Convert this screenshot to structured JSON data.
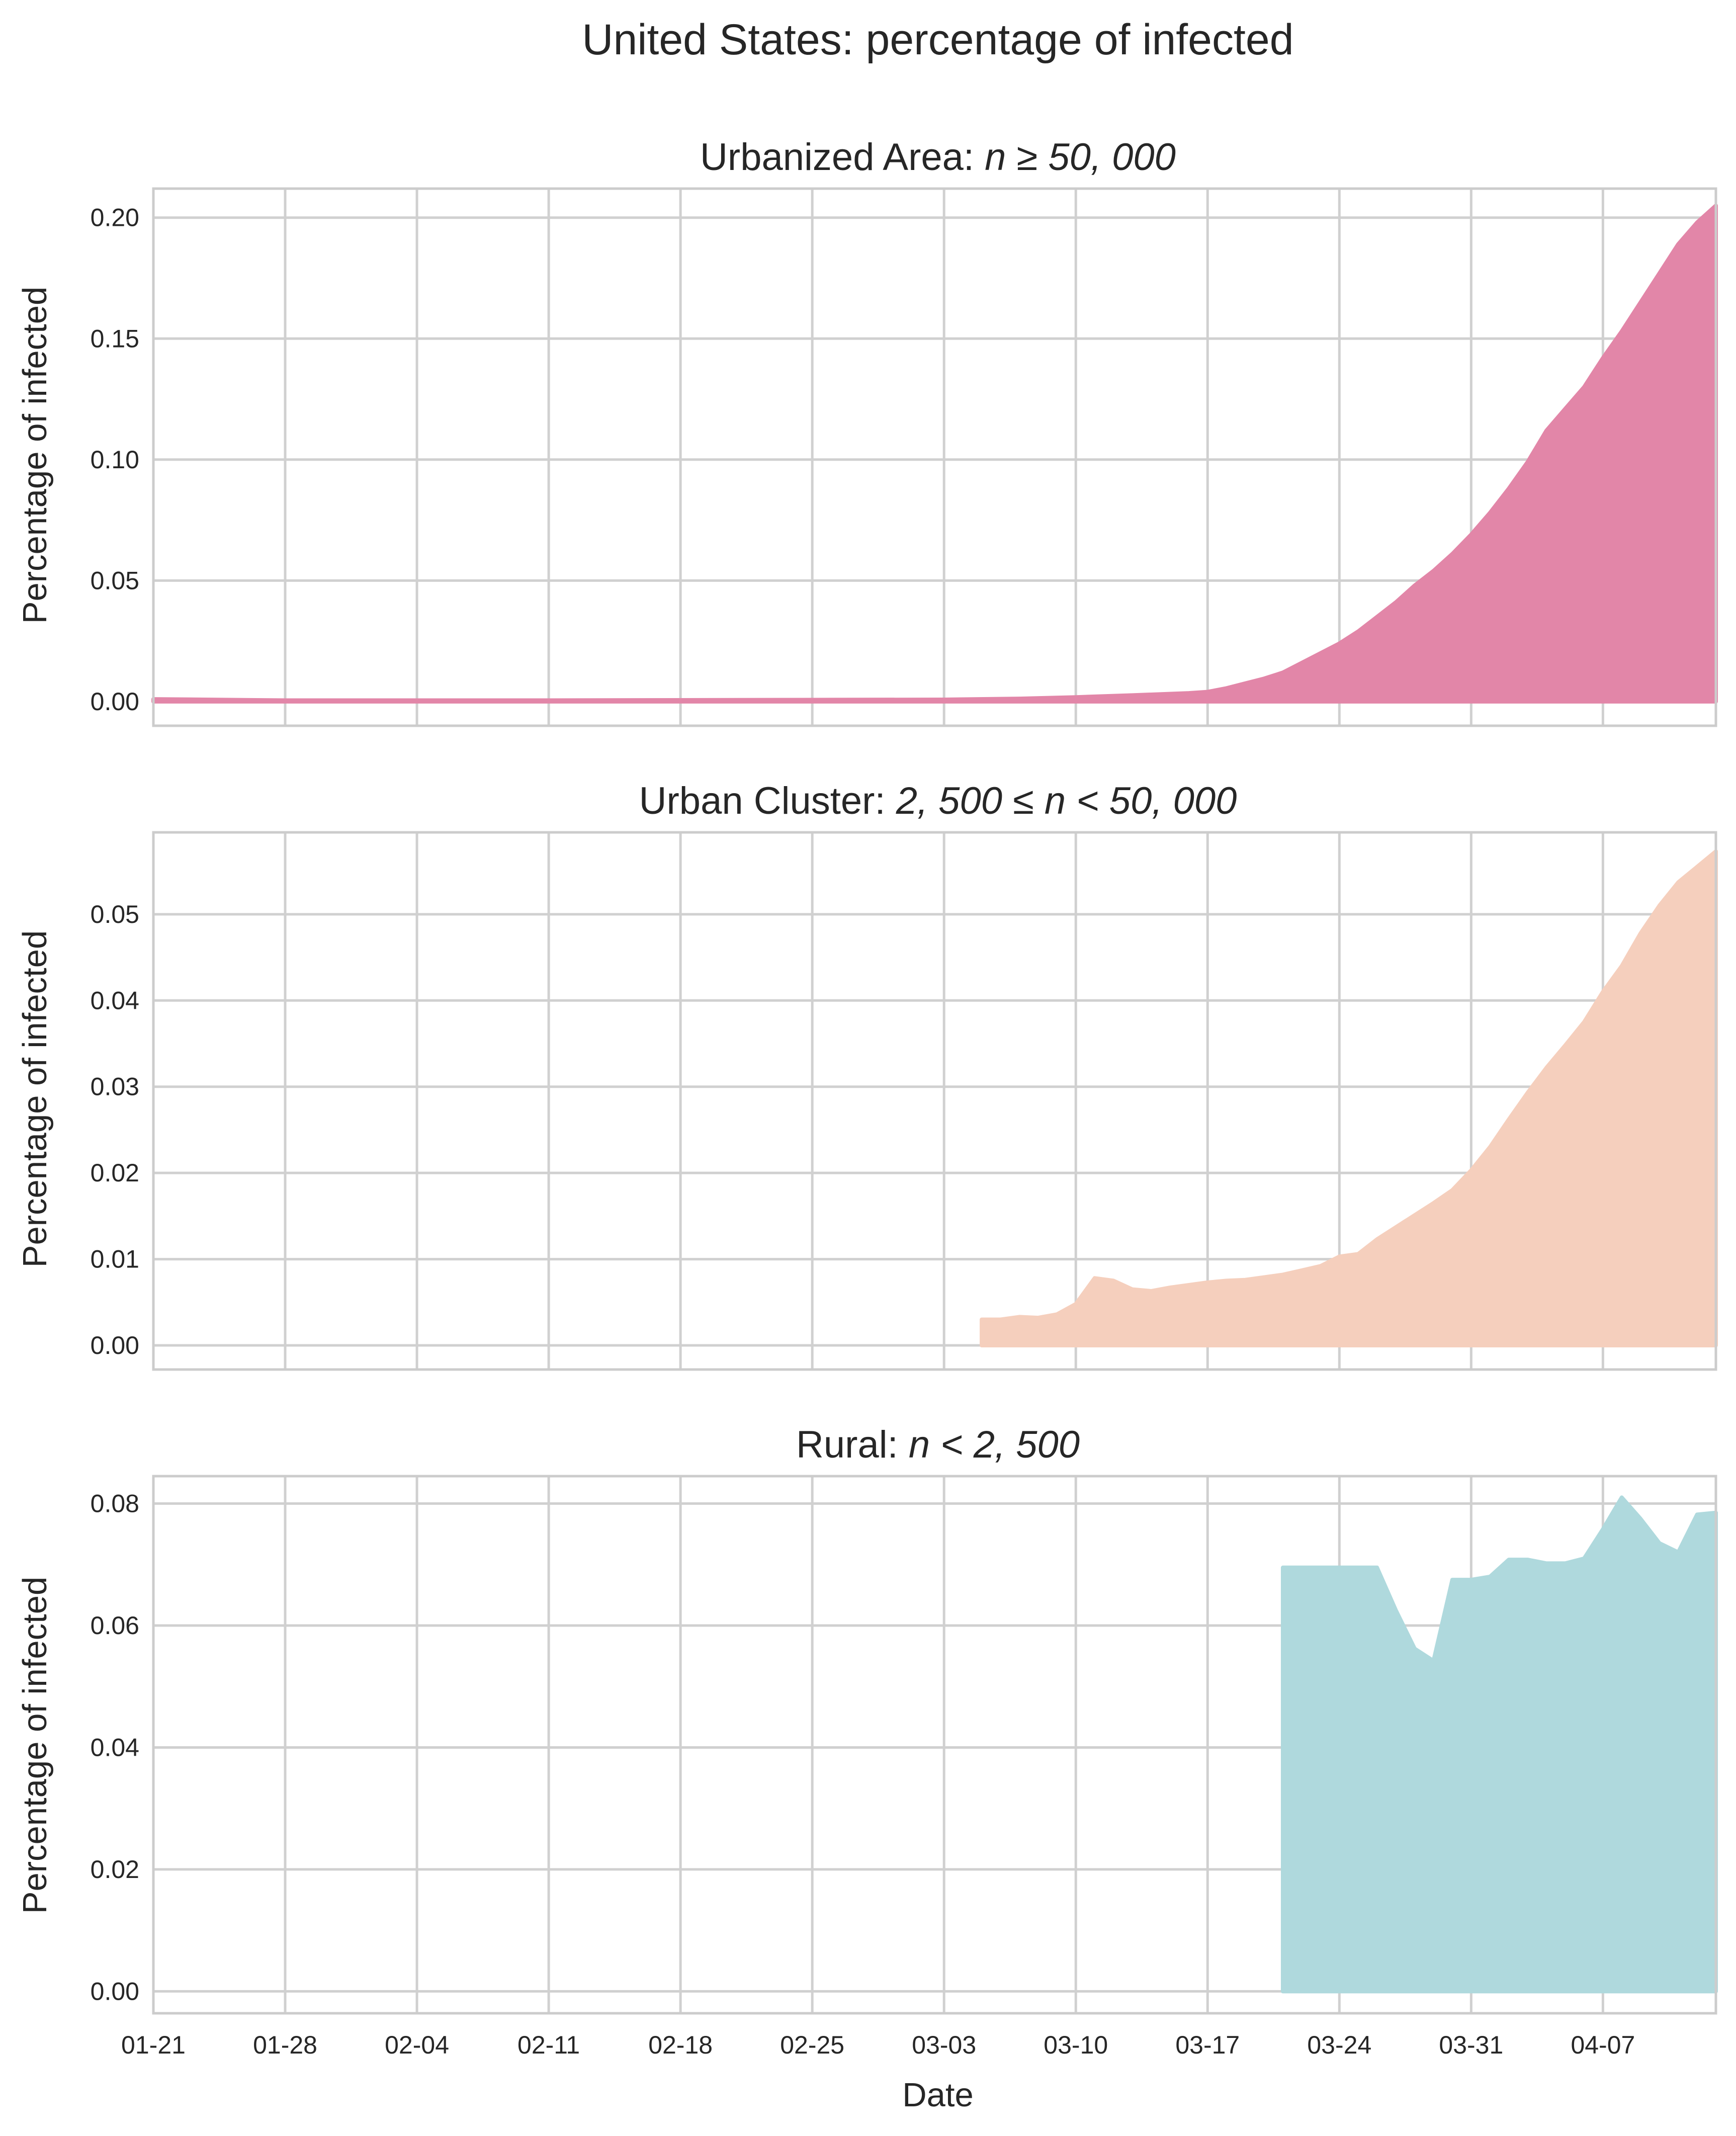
{
  "title": "United States: percentage of infected",
  "x_ticks": [
    "01-21",
    "01-28",
    "02-04",
    "02-11",
    "02-18",
    "02-25",
    "03-03",
    "03-10",
    "03-17",
    "03-24",
    "03-31",
    "04-07"
  ],
  "x_label": "Date",
  "chart_data": [
    {
      "type": "area",
      "title": "Urbanized Area: n ≥ 50, 000",
      "title_prefix": "Urbanized Area: ",
      "title_math": "n ≥ 50, 000",
      "xlabel": "Date",
      "ylabel": "Percentage of infected",
      "ylim": [
        -0.01,
        0.212
      ],
      "yticks": [
        0.0,
        0.05,
        0.1,
        0.15,
        0.2
      ],
      "ytick_labels": [
        "0.00",
        "0.05",
        "0.10",
        "0.15",
        "0.20"
      ],
      "xlim": [
        "2020-01-21",
        "2020-04-13"
      ],
      "grid": true,
      "color": "#e286a8",
      "series": [
        {
          "x": [
            "2020-01-21",
            "2020-01-28",
            "2020-02-04",
            "2020-02-11",
            "2020-02-18",
            "2020-02-25",
            "2020-03-03",
            "2020-03-07",
            "2020-03-10",
            "2020-03-13",
            "2020-03-16",
            "2020-03-17",
            "2020-03-18",
            "2020-03-19",
            "2020-03-20",
            "2020-03-21",
            "2020-03-22",
            "2020-03-23",
            "2020-03-24",
            "2020-03-25",
            "2020-03-26",
            "2020-03-27",
            "2020-03-28",
            "2020-03-29",
            "2020-03-30",
            "2020-03-31",
            "2020-04-01",
            "2020-04-02",
            "2020-04-03",
            "2020-04-04",
            "2020-04-05",
            "2020-04-06",
            "2020-04-07",
            "2020-04-08",
            "2020-04-09",
            "2020-04-10",
            "2020-04-11",
            "2020-04-12",
            "2020-04-13"
          ],
          "values": [
            0.001,
            0.0005,
            0.0005,
            0.0005,
            0.0006,
            0.0007,
            0.0008,
            0.0012,
            0.0018,
            0.0026,
            0.0035,
            0.004,
            0.0055,
            0.0075,
            0.0095,
            0.012,
            0.016,
            0.02,
            0.024,
            0.029,
            0.035,
            0.041,
            0.048,
            0.054,
            0.061,
            0.069,
            0.078,
            0.088,
            0.099,
            0.112,
            0.121,
            0.13,
            0.142,
            0.153,
            0.165,
            0.177,
            0.189,
            0.198,
            0.205
          ]
        }
      ]
    },
    {
      "type": "area",
      "title": "Urban Cluster: 2, 500 ≤ n < 50, 000",
      "title_prefix": "Urban Cluster: ",
      "title_math": "2, 500 ≤ n < 50, 000",
      "xlabel": "Date",
      "ylabel": "Percentage of infected",
      "ylim": [
        -0.0028,
        0.0595
      ],
      "yticks": [
        0.0,
        0.01,
        0.02,
        0.03,
        0.04,
        0.05
      ],
      "ytick_labels": [
        "0.00",
        "0.01",
        "0.02",
        "0.03",
        "0.04",
        "0.05"
      ],
      "xlim": [
        "2020-01-21",
        "2020-04-13"
      ],
      "grid": true,
      "color": "#f5cfbd",
      "series": [
        {
          "x": [
            "2020-03-05",
            "2020-03-06",
            "2020-03-07",
            "2020-03-08",
            "2020-03-09",
            "2020-03-10",
            "2020-03-11",
            "2020-03-12",
            "2020-03-13",
            "2020-03-14",
            "2020-03-15",
            "2020-03-16",
            "2020-03-17",
            "2020-03-18",
            "2020-03-19",
            "2020-03-20",
            "2020-03-21",
            "2020-03-22",
            "2020-03-23",
            "2020-03-24",
            "2020-03-25",
            "2020-03-26",
            "2020-03-27",
            "2020-03-28",
            "2020-03-29",
            "2020-03-30",
            "2020-03-31",
            "2020-04-01",
            "2020-04-02",
            "2020-04-03",
            "2020-04-04",
            "2020-04-05",
            "2020-04-06",
            "2020-04-07",
            "2020-04-08",
            "2020-04-09",
            "2020-04-10",
            "2020-04-11",
            "2020-04-12",
            "2020-04-13"
          ],
          "values": [
            0.003,
            0.003,
            0.0033,
            0.0032,
            0.0036,
            0.0048,
            0.0078,
            0.0075,
            0.0065,
            0.0063,
            0.0067,
            0.007,
            0.0073,
            0.0075,
            0.0076,
            0.0079,
            0.0082,
            0.0087,
            0.0092,
            0.0103,
            0.0106,
            0.0123,
            0.0137,
            0.0151,
            0.0165,
            0.018,
            0.0203,
            0.023,
            0.0262,
            0.0293,
            0.0322,
            0.0348,
            0.0375,
            0.041,
            0.044,
            0.0478,
            0.051,
            0.0537,
            0.0555,
            0.0573
          ]
        }
      ]
    },
    {
      "type": "area",
      "title": "Rural: n < 2, 500",
      "title_prefix": "Rural: ",
      "title_math": "n < 2, 500",
      "xlabel": "Date",
      "ylabel": "Percentage of infected",
      "ylim": [
        -0.0036,
        0.0845
      ],
      "yticks": [
        0.0,
        0.02,
        0.04,
        0.06,
        0.08
      ],
      "ytick_labels": [
        "0.00",
        "0.02",
        "0.04",
        "0.06",
        "0.08"
      ],
      "xlim": [
        "2020-01-21",
        "2020-04-13"
      ],
      "grid": true,
      "color": "#afd9dd",
      "series": [
        {
          "x": [
            "2020-03-21",
            "2020-03-22",
            "2020-03-23",
            "2020-03-24",
            "2020-03-25",
            "2020-03-26",
            "2020-03-27",
            "2020-03-28",
            "2020-03-29",
            "2020-03-30",
            "2020-03-31",
            "2020-04-01",
            "2020-04-02",
            "2020-04-03",
            "2020-04-04",
            "2020-04-05",
            "2020-04-06",
            "2020-04-07",
            "2020-04-08",
            "2020-04-09",
            "2020-04-10",
            "2020-04-11",
            "2020-04-12",
            "2020-04-13"
          ],
          "values": [
            0.0695,
            0.0695,
            0.0695,
            0.0695,
            0.0695,
            0.0695,
            0.0625,
            0.0562,
            0.0542,
            0.0675,
            0.0675,
            0.068,
            0.0708,
            0.0708,
            0.0702,
            0.0702,
            0.071,
            0.0758,
            0.081,
            0.0775,
            0.0735,
            0.072,
            0.0782,
            0.0785
          ]
        }
      ]
    }
  ]
}
